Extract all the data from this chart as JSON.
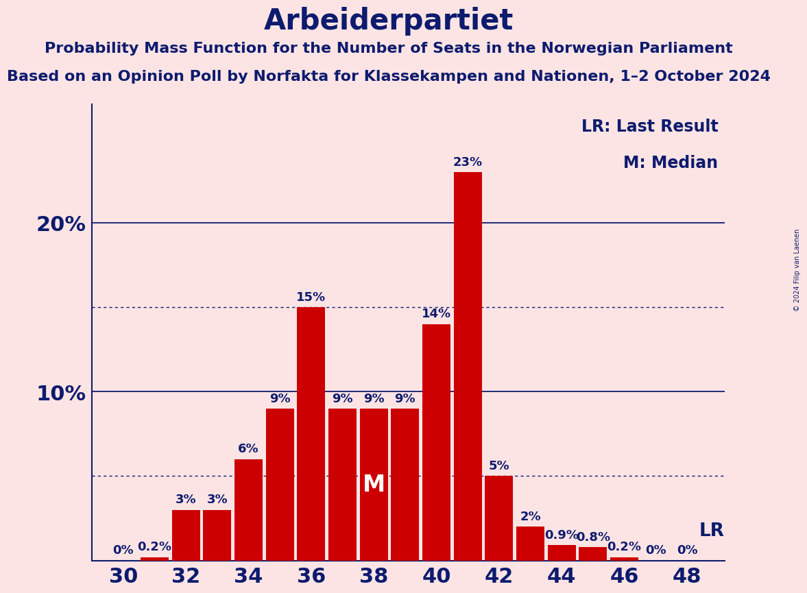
{
  "title": "Arbeiderpartiet",
  "subtitle1": "Probability Mass Function for the Number of Seats in the Norwegian Parliament",
  "subtitle2": "Based on an Opinion Poll by Norfakta for Klassekampen and Nationen, 1–2 October 2024",
  "copyright": "© 2024 Filip van Laenen",
  "seats": [
    30,
    31,
    32,
    33,
    34,
    35,
    36,
    37,
    38,
    39,
    40,
    41,
    42,
    43,
    44,
    45,
    46,
    47,
    48
  ],
  "probabilities": [
    0.0,
    0.2,
    3.0,
    3.0,
    6.0,
    9.0,
    15.0,
    9.0,
    9.0,
    9.0,
    14.0,
    23.0,
    5.0,
    2.0,
    0.9,
    0.8,
    0.2,
    0.0,
    0.0
  ],
  "bar_color": "#cc0000",
  "background_color": "#fce4e4",
  "text_color": "#0d1b6e",
  "grid_color": "#0d1b6e",
  "median_seat": 38,
  "last_result_seat": 48,
  "xticks": [
    30,
    32,
    34,
    36,
    38,
    40,
    42,
    44,
    46,
    48
  ],
  "solid_lines": [
    10.0,
    20.0
  ],
  "dotted_lines": [
    5.0,
    15.0
  ],
  "legend_lr": "LR: Last Result",
  "legend_m": "M: Median",
  "title_fontsize": 30,
  "subtitle_fontsize": 16,
  "axis_fontsize": 22,
  "bar_label_fontsize": 13,
  "legend_fontsize": 17,
  "ylim": [
    0,
    27
  ],
  "bar_labels": {
    "30": "0%",
    "31": "0.2%",
    "32": "3%",
    "33": "3%",
    "34": "6%",
    "35": "9%",
    "36": "15%",
    "37": "9%",
    "38": "9%",
    "39": "9%",
    "40": "14%",
    "41": "23%",
    "42": "5%",
    "43": "2%",
    "44": "0.9%",
    "45": "0.8%",
    "46": "0.2%",
    "47": "0%",
    "48": "0%"
  }
}
